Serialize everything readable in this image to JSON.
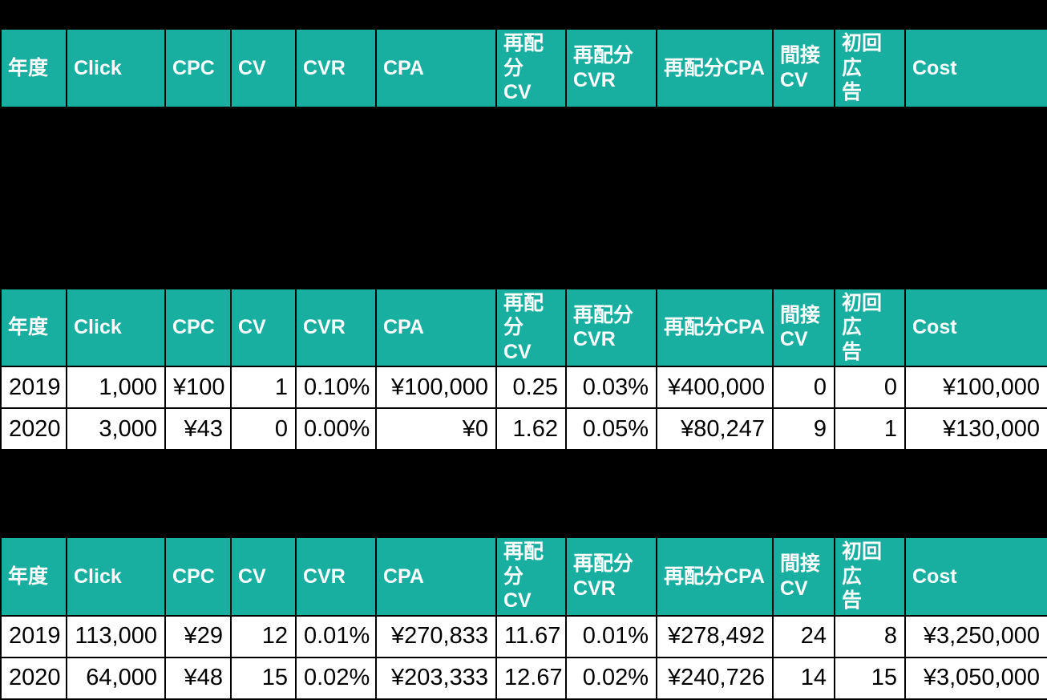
{
  "colors": {
    "header_bg": "#18AEA0",
    "header_text": "#FFFFFF",
    "cell_bg": "#FFFFFF",
    "cell_text": "#000000",
    "canvas_bg": "#000000",
    "gridline": "#000000"
  },
  "columns": [
    {
      "label": "年度"
    },
    {
      "label": "Click"
    },
    {
      "label": "CPC"
    },
    {
      "label": "CV"
    },
    {
      "label": "CVR"
    },
    {
      "label": "CPA"
    },
    {
      "label": "再配分\nCV"
    },
    {
      "label": "再配分\nCVR"
    },
    {
      "label": "再配分CPA"
    },
    {
      "label": "間接\nCV"
    },
    {
      "label": "初回広\n告"
    },
    {
      "label": "Cost"
    }
  ],
  "tables": [
    {
      "name": "top (header only, no visible rows)",
      "rows": []
    },
    {
      "name": "middle",
      "rows": [
        [
          "2019",
          "1,000",
          "¥100",
          "1",
          "0.10%",
          "¥100,000",
          "0.25",
          "0.03%",
          "¥400,000",
          "0",
          "0",
          "¥100,000"
        ],
        [
          "2020",
          "3,000",
          "¥43",
          "0",
          "0.00%",
          "¥0",
          "1.62",
          "0.05%",
          "¥80,247",
          "9",
          "1",
          "¥130,000"
        ]
      ]
    },
    {
      "name": "bottom",
      "rows": [
        [
          "2019",
          "113,000",
          "¥29",
          "12",
          "0.01%",
          "¥270,833",
          "11.67",
          "0.01%",
          "¥278,492",
          "24",
          "8",
          "¥3,250,000"
        ],
        [
          "2020",
          "64,000",
          "¥48",
          "15",
          "0.02%",
          "¥203,333",
          "12.67",
          "0.02%",
          "¥240,726",
          "14",
          "15",
          "¥3,050,000"
        ]
      ]
    }
  ]
}
